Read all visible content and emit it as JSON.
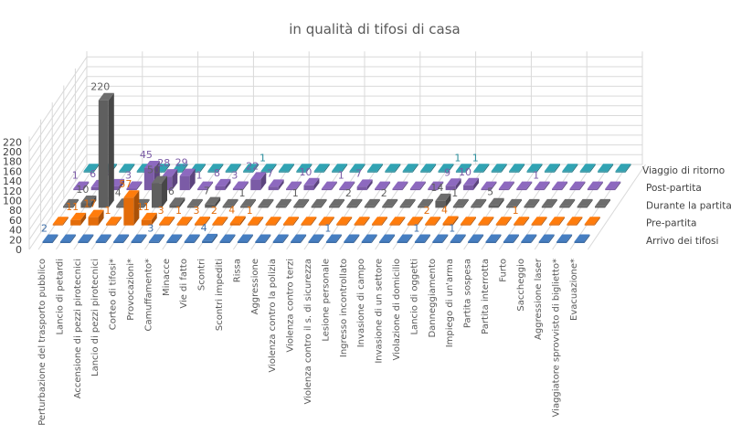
{
  "chart_data": {
    "type": "bar",
    "subtype": "3d-column",
    "title": "in qualità di tifosi di casa",
    "xlabel": "",
    "ylabel": "",
    "ylim": [
      0,
      220
    ],
    "yticks": [
      0,
      20,
      40,
      60,
      80,
      100,
      120,
      140,
      160,
      180,
      200,
      220
    ],
    "grid": true,
    "legend": "right (series labels on depth axis)",
    "data_labels": "shown for non-zero values",
    "categories": [
      "Perturbazione del trasporto pubblico",
      "Lancio di petardi",
      "Accensione di pezzi pirotecnici",
      "Lancio di pezzi pirotecnici",
      "Corteo di tifosi*",
      "Provocazioni*",
      "Camuffamento*",
      "Minacce",
      "Vie di fatto",
      "Scontri",
      "Scontri impediti",
      "Rissa",
      "Aggressione",
      "Violenza contro la polizia",
      "Violenza contro terzi",
      "Violenza contro il s. di sicurezza",
      "Lesione personale",
      "Ingresso incontrollato",
      "Invasione di campo",
      "Invasione di un settore",
      "Violazione di domicilio",
      "Lancio di oggetti",
      "Danneggiamento",
      "Impiego di un'arma",
      "Partita sospesa",
      "Partita interrotta",
      "Furto",
      "Saccheggio",
      "Aggressione laser",
      "Viaggiatore sprovvisto di biglietto*",
      "Evacuazione*"
    ],
    "series": [
      {
        "name": "Arrivo dei tifosi",
        "color": "#3d6ea8",
        "values": [
          2,
          0,
          0,
          0,
          0,
          0,
          3,
          0,
          0,
          4,
          0,
          0,
          0,
          0,
          0,
          0,
          1,
          0,
          0,
          0,
          0,
          1,
          0,
          1,
          0,
          0,
          0,
          0,
          0,
          0,
          0
        ]
      },
      {
        "name": "Pre-partita",
        "color": "#e36c0a",
        "values": [
          0,
          11,
          17,
          1,
          57,
          11,
          3,
          1,
          3,
          2,
          4,
          1,
          0,
          0,
          0,
          0,
          0,
          0,
          0,
          0,
          0,
          2,
          4,
          0,
          0,
          0,
          1,
          0,
          0,
          0,
          0
        ]
      },
      {
        "name": "Durante la partita",
        "color": "#5f5f5f",
        "values": [
          0,
          10,
          220,
          4,
          0,
          50,
          6,
          0,
          7,
          0,
          1,
          0,
          0,
          1,
          0,
          0,
          2,
          0,
          2,
          0,
          0,
          14,
          1,
          0,
          5,
          0,
          0,
          0,
          0,
          0,
          0
        ]
      },
      {
        "name": "Post-partita",
        "color": "#7b5ba6",
        "values": [
          1,
          6,
          8,
          3,
          45,
          28,
          29,
          1,
          8,
          3,
          22,
          7,
          0,
          10,
          0,
          1,
          7,
          0,
          0,
          0,
          0,
          9,
          10,
          0,
          0,
          0,
          1,
          0,
          0,
          0,
          0
        ]
      },
      {
        "name": "Viaggio di ritorno",
        "color": "#2b8e9c",
        "values": [
          0,
          1,
          0,
          0,
          0,
          0,
          0,
          0,
          0,
          0,
          1,
          0,
          0,
          0,
          0,
          0,
          0,
          0,
          0,
          0,
          0,
          1,
          1,
          0,
          0,
          0,
          0,
          0,
          0,
          0,
          0
        ]
      }
    ]
  }
}
